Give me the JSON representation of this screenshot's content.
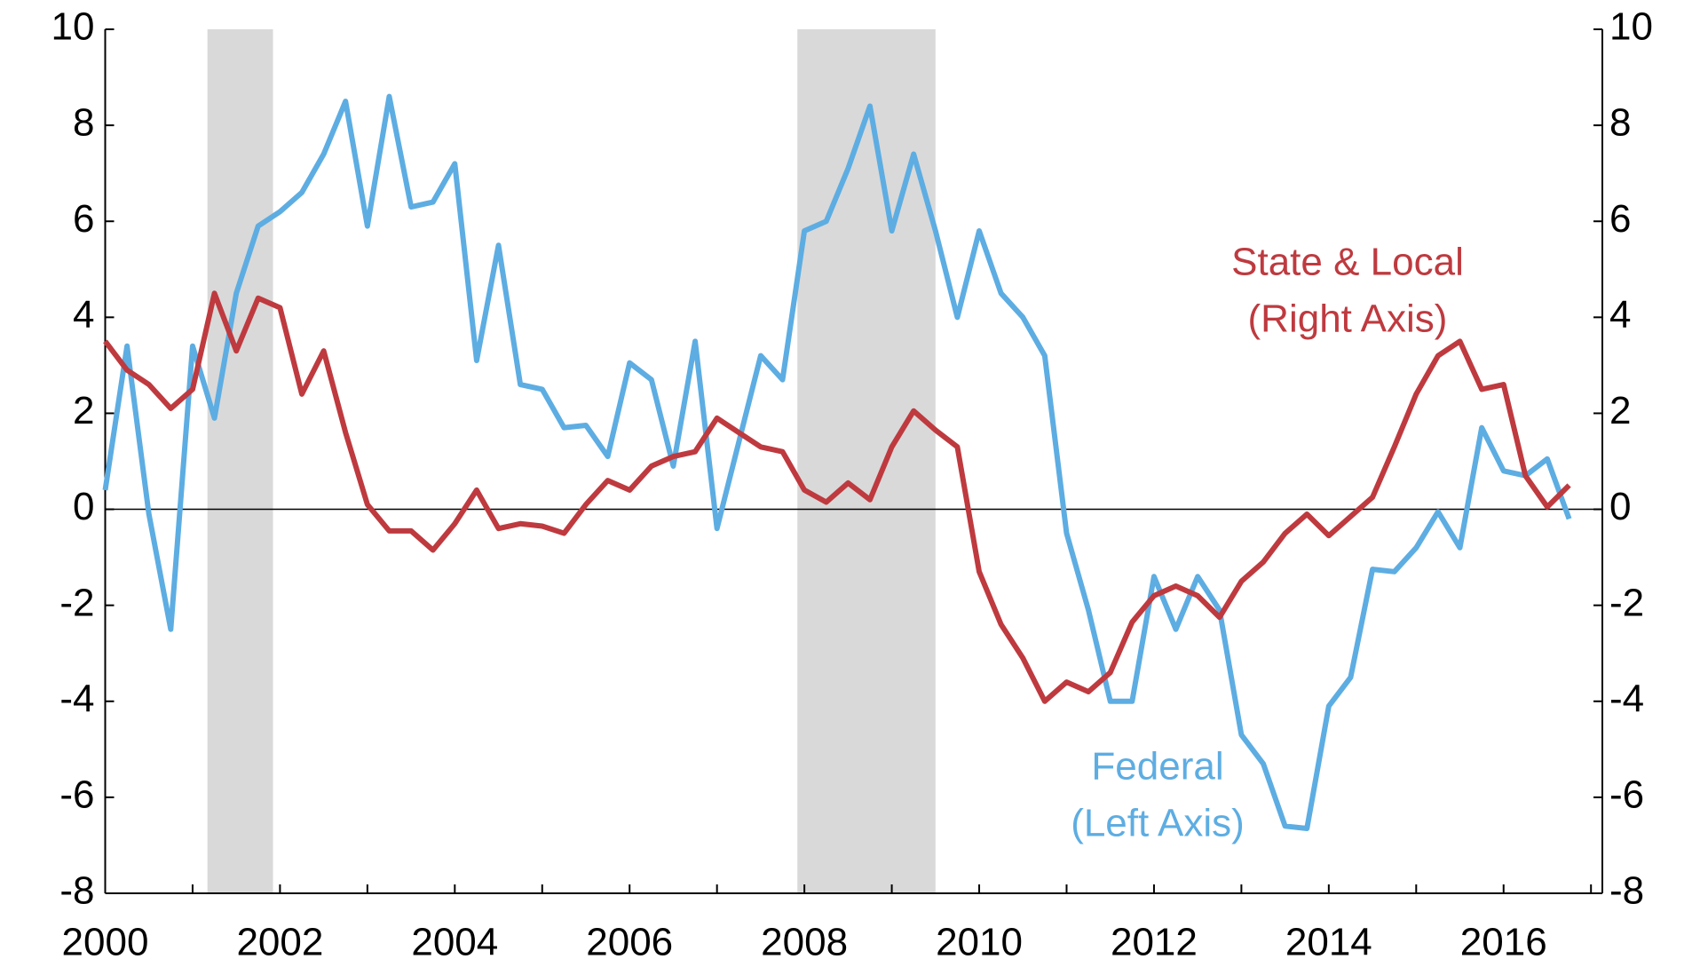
{
  "chart_data": {
    "type": "line",
    "x": [
      2000,
      2000.25,
      2000.5,
      2000.75,
      2001,
      2001.25,
      2001.5,
      2001.75,
      2002,
      2002.25,
      2002.5,
      2002.75,
      2003,
      2003.25,
      2003.5,
      2003.75,
      2004,
      2004.25,
      2004.5,
      2004.75,
      2005,
      2005.25,
      2005.5,
      2005.75,
      2006,
      2006.25,
      2006.5,
      2006.75,
      2007,
      2007.25,
      2007.5,
      2007.75,
      2008,
      2008.25,
      2008.5,
      2008.75,
      2009,
      2009.25,
      2009.5,
      2009.75,
      2010,
      2010.25,
      2010.5,
      2010.75,
      2011,
      2011.25,
      2011.5,
      2011.75,
      2012,
      2012.25,
      2012.5,
      2012.75,
      2013,
      2013.25,
      2013.5,
      2013.75,
      2014,
      2014.25,
      2014.5,
      2014.75,
      2015,
      2015.25,
      2015.5,
      2015.75,
      2016,
      2016.25,
      2016.5,
      2016.75
    ],
    "series": [
      {
        "name": "Federal",
        "axis_note": "(Left Axis)",
        "color": "#5dade2",
        "values": [
          0.4,
          3.4,
          -0.1,
          -2.5,
          3.4,
          1.9,
          4.5,
          5.9,
          6.2,
          6.6,
          7.4,
          8.5,
          5.9,
          8.6,
          6.3,
          6.4,
          7.2,
          3.1,
          5.5,
          2.6,
          2.5,
          1.7,
          1.75,
          1.1,
          3.05,
          2.7,
          0.9,
          3.5,
          -0.4,
          1.4,
          3.2,
          2.7,
          5.8,
          6.0,
          7.1,
          8.4,
          5.8,
          7.4,
          5.8,
          4.0,
          5.8,
          4.5,
          4.0,
          3.2,
          -0.5,
          -2.1,
          -4.0,
          -4.0,
          -1.4,
          -2.5,
          -1.4,
          -2.1,
          -4.7,
          -5.3,
          -6.6,
          -6.65,
          -4.1,
          -3.5,
          -1.25,
          -1.3,
          -0.8,
          -0.05,
          -0.8,
          1.7,
          0.8,
          0.7,
          1.05,
          -0.2
        ]
      },
      {
        "name": "State & Local",
        "axis_note": "(Right Axis)",
        "color": "#be3a3f",
        "axis": "y2",
        "values": [
          3.5,
          2.9,
          2.6,
          2.1,
          2.5,
          4.5,
          3.3,
          4.4,
          4.2,
          2.4,
          3.3,
          1.6,
          0.1,
          -0.45,
          -0.45,
          -0.85,
          -0.3,
          0.4,
          -0.4,
          -0.3,
          -0.35,
          -0.5,
          0.1,
          0.6,
          0.4,
          0.9,
          1.1,
          1.2,
          1.9,
          1.6,
          1.3,
          1.2,
          0.4,
          0.15,
          0.55,
          0.2,
          1.3,
          2.05,
          1.65,
          1.3,
          -1.3,
          -2.4,
          -3.1,
          -4.0,
          -3.6,
          -3.8,
          -3.4,
          -2.35,
          -1.8,
          -1.6,
          -1.8,
          -2.25,
          -1.5,
          -1.1,
          -0.5,
          -0.1,
          -0.55,
          -0.15,
          0.25,
          1.3,
          2.4,
          3.2,
          3.5,
          2.5,
          2.6,
          0.7,
          0.05,
          0.5
        ]
      }
    ],
    "shaded_ranges": [
      [
        2001.17,
        2001.92
      ],
      [
        2007.92,
        2009.5
      ]
    ],
    "shade_color": "#d9d9d9",
    "xlim": [
      2000,
      2017.13
    ],
    "xticks": [
      2000,
      2002,
      2004,
      2006,
      2008,
      2010,
      2012,
      2014,
      2016
    ],
    "xminor_ticks": [
      2001,
      2003,
      2005,
      2007,
      2009,
      2011,
      2013,
      2015,
      2017
    ],
    "ylim": [
      -8,
      10
    ],
    "yticks": [
      -8,
      -6,
      -4,
      -2,
      0,
      2,
      4,
      6,
      8,
      10
    ],
    "y2lim": [
      -8,
      10
    ],
    "y2ticks": [
      -8,
      -6,
      -4,
      -2,
      0,
      2,
      4,
      6,
      8,
      10
    ],
    "zero_line": true
  }
}
